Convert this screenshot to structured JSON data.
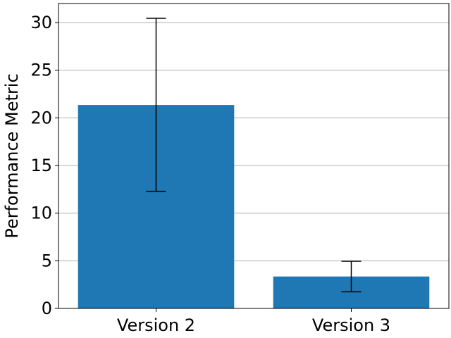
{
  "chart_data": {
    "type": "bar",
    "title": "",
    "xlabel": "",
    "ylabel": "Performance Metric",
    "categories": [
      "Version 2",
      "Version 3"
    ],
    "values": [
      21.35,
      3.35
    ],
    "error_low": [
      12.3,
      1.75
    ],
    "error_high": [
      30.45,
      4.95
    ],
    "ylim": [
      0,
      32
    ],
    "yticks": [
      0,
      5,
      10,
      15,
      20,
      25,
      30
    ],
    "grid": "y",
    "legend": "none",
    "bar_color": "#1f77b4",
    "error_color": "#000000",
    "grid_color": "#b0b0b0"
  }
}
